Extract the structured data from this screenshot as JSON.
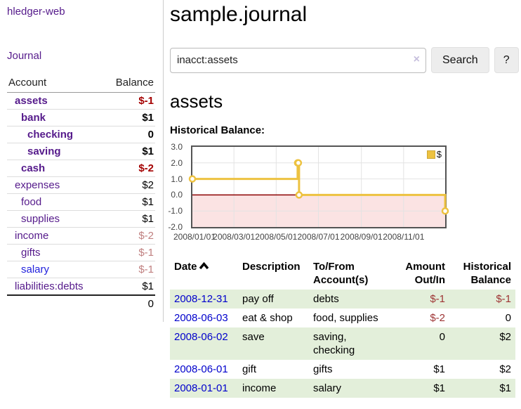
{
  "sidebar": {
    "brand": "hledger-web",
    "journal_link": "Journal",
    "accounts_table": {
      "headers": [
        "Account",
        "Balance"
      ],
      "rows": [
        {
          "name": "assets",
          "indent": 1,
          "bold": true,
          "balance": "$-1",
          "balance_style": "neg-strong"
        },
        {
          "name": "bank",
          "indent": 2,
          "bold": true,
          "balance": "$1",
          "balance_style": "pos"
        },
        {
          "name": "checking",
          "indent": 3,
          "bold": true,
          "balance": "0",
          "balance_style": "pos"
        },
        {
          "name": "saving",
          "indent": 3,
          "bold": true,
          "balance": "$1",
          "balance_style": "pos"
        },
        {
          "name": "cash",
          "indent": 2,
          "bold": true,
          "balance": "$-2",
          "balance_style": "neg-strong"
        },
        {
          "name": "expenses",
          "indent": 1,
          "bold": false,
          "balance": "$2",
          "balance_style": "pos"
        },
        {
          "name": "food",
          "indent": 2,
          "bold": false,
          "balance": "$1",
          "balance_style": "pos"
        },
        {
          "name": "supplies",
          "indent": 2,
          "bold": false,
          "balance": "$1",
          "balance_style": "pos"
        },
        {
          "name": "income",
          "indent": 1,
          "bold": false,
          "balance": "$-2",
          "balance_style": "neg-soft"
        },
        {
          "name": "gifts",
          "indent": 2,
          "bold": false,
          "balance": "$-1",
          "balance_style": "neg-soft"
        },
        {
          "name": "salary",
          "indent": 2,
          "bold": false,
          "link_style": "fresh",
          "balance": "$-1",
          "balance_style": "neg-soft"
        },
        {
          "name": "liabilities:debts",
          "indent": 1,
          "bold": false,
          "balance": "$1",
          "balance_style": "pos"
        }
      ],
      "total": "0"
    }
  },
  "header": {
    "title": "sample.journal"
  },
  "search": {
    "value": "inacct:assets",
    "clear_icon": "×",
    "button_label": "Search",
    "help_label": "?"
  },
  "account_page": {
    "heading": "assets",
    "chart_label": "Historical Balance:"
  },
  "chart_data": {
    "type": "line",
    "step": "after",
    "title": "Historical Balance:",
    "xlim": [
      "2008-01-01",
      "2008-12-31"
    ],
    "ylim": [
      -2,
      3
    ],
    "x_ticks": [
      {
        "x": "2008-01-01",
        "label": "2008/01/01"
      },
      {
        "x": "2008-03-01",
        "label": "2008/03/01"
      },
      {
        "x": "2008-05-01",
        "label": "2008/05/01"
      },
      {
        "x": "2008-07-01",
        "label": "2008/07/01"
      },
      {
        "x": "2008-09-01",
        "label": "2008/09/01"
      },
      {
        "x": "2008-11-01",
        "label": "2008/11/01"
      }
    ],
    "y_ticks": [
      {
        "v": 3,
        "label": "3.0"
      },
      {
        "v": 2,
        "label": "2.0"
      },
      {
        "v": 1,
        "label": "1.0"
      },
      {
        "v": 0,
        "label": "0.0"
      },
      {
        "v": -1,
        "label": "-1.0"
      },
      {
        "v": -2,
        "label": "-2.0"
      }
    ],
    "series": [
      {
        "name": "$",
        "color": "#edc240",
        "marker_fill": "#ffffff",
        "points": [
          {
            "x": "2008-01-01",
            "y": 1
          },
          {
            "x": "2008-06-01",
            "y": 2
          },
          {
            "x": "2008-06-02",
            "y": 2
          },
          {
            "x": "2008-06-03",
            "y": 0
          },
          {
            "x": "2008-12-31",
            "y": -1
          }
        ]
      }
    ],
    "legend": {
      "label": "$",
      "position": "top-right"
    },
    "grid": true,
    "grid_color": "#e3e3e3",
    "below_zero_fill": "#fbe3e3",
    "zero_line_color": "#8b0000"
  },
  "register": {
    "columns": [
      {
        "label": "Date",
        "sorted": "asc"
      },
      {
        "label": "Description"
      },
      {
        "label": "To/From Account(s)"
      },
      {
        "label": "Amount Out/In",
        "align": "right"
      },
      {
        "label": "Historical Balance",
        "align": "right"
      }
    ],
    "rows": [
      {
        "date": "2008-12-31",
        "description": "pay off",
        "accounts": "debts",
        "amount": "$-1",
        "amount_negative": true,
        "balance": "$-1",
        "balance_negative": true
      },
      {
        "date": "2008-06-03",
        "description": "eat & shop",
        "accounts": "food, supplies",
        "amount": "$-2",
        "amount_negative": true,
        "balance": "0",
        "balance_negative": false
      },
      {
        "date": "2008-06-02",
        "description": "save",
        "accounts": "saving, checking",
        "amount": "0",
        "amount_negative": false,
        "balance": "$2",
        "balance_negative": false
      },
      {
        "date": "2008-06-01",
        "description": "gift",
        "accounts": "gifts",
        "amount": "$1",
        "amount_negative": false,
        "balance": "$2",
        "balance_negative": false
      },
      {
        "date": "2008-01-01",
        "description": "income",
        "accounts": "salary",
        "amount": "$1",
        "amount_negative": false,
        "balance": "$1",
        "balance_negative": false
      }
    ]
  }
}
